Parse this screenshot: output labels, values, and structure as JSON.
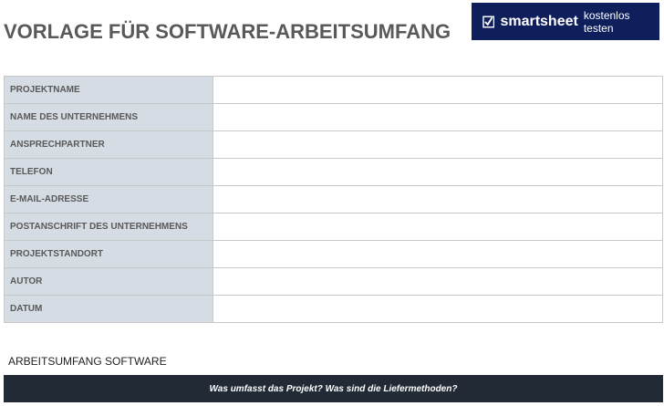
{
  "header": {
    "title": "VORLAGE FÜR SOFTWARE-ARBEITSUMFANG",
    "logo": {
      "brand": "smartsheet",
      "cta": "kostenlos testen"
    }
  },
  "table": {
    "rows": [
      [
        "PROJEKTNAME",
        ""
      ],
      [
        "NAME DES UNTERNEHMENS",
        ""
      ],
      [
        "ANSPRECHPARTNER",
        ""
      ],
      [
        "TELEFON",
        ""
      ],
      [
        "E-MAIL-ADRESSE",
        ""
      ],
      [
        "POSTANSCHRIFT DES UNTERNEHMENS",
        ""
      ],
      [
        "PROJEKTSTANDORT",
        ""
      ],
      [
        "AUTOR",
        ""
      ],
      [
        "DATUM",
        ""
      ]
    ]
  },
  "section": {
    "title": "ARBEITSUMFANG SOFTWARE",
    "banner": "Was umfasst das Projekt? Was sind die Liefermethoden?"
  }
}
